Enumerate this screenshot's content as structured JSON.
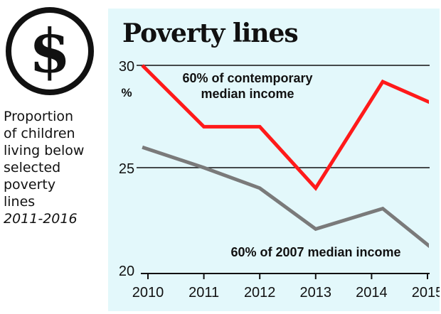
{
  "description": {
    "lines": [
      "Proportion",
      "of children",
      "living below",
      "selected",
      "poverty",
      "lines"
    ],
    "years": "2011-2016"
  },
  "logo": {
    "icon": "dollar-icon",
    "glyph": "$"
  },
  "colors": {
    "panel_background": "#e3f8fb",
    "contemporary": "#ff1a1a",
    "fixed_2007": "#7a7a7a",
    "gridline": "#111111"
  },
  "chart_data": {
    "type": "line",
    "title": "Poverty lines",
    "ylabel": "%",
    "xlabel": "",
    "x": [
      "2010",
      "2011",
      "2012",
      "2013",
      "2014",
      "2015"
    ],
    "ylim": [
      20,
      30
    ],
    "y_ticks": [
      20,
      25,
      30
    ],
    "y_tick_labels": [
      "20",
      "25",
      "30"
    ],
    "gridlines_at": [
      25,
      30
    ],
    "series": [
      {
        "name": "60% of contemporary median income",
        "label_lines": [
          "60% of contemporary",
          "median income"
        ],
        "color": "#ff1a1a",
        "points": [
          [
            2009.9,
            30
          ],
          [
            2011,
            27
          ],
          [
            2012,
            27
          ],
          [
            2013,
            24
          ],
          [
            2014.2,
            29.2
          ],
          [
            2015.2,
            28
          ]
        ]
      },
      {
        "name": "60% of 2007 median income",
        "label_lines": [
          "60% of 2007 median income"
        ],
        "color": "#7a7a7a",
        "points": [
          [
            2009.9,
            26
          ],
          [
            2011,
            25
          ],
          [
            2012,
            24
          ],
          [
            2013,
            22
          ],
          [
            2014.2,
            23
          ],
          [
            2015.2,
            20.8
          ]
        ]
      }
    ]
  }
}
